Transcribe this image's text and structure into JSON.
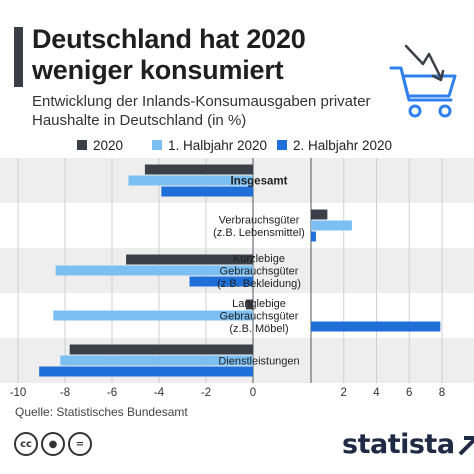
{
  "header": {
    "title": "Deutschland hat 2020 weniger konsumiert",
    "subtitle": "Entwicklung der Inlands-Konsumausgaben privater Haushalte in Deutschland (in %)"
  },
  "footer": {
    "source": "Quelle: Statistisches Bundesamt",
    "brand": "statista",
    "cc_icons": [
      "cc-icon",
      "by-icon",
      "nd-icon"
    ]
  },
  "colors": {
    "s2020": "#3a3f48",
    "h1": "#7cc0f3",
    "h2": "#1f6fd8",
    "band": "#eeeeee",
    "grid": "#cfcfcf"
  },
  "chart_data": {
    "type": "bar",
    "orientation": "horizontal",
    "categories": [
      "Insgesamt",
      "Verbrauchsgüter (z.B. Lebensmittel)",
      "Kurzlebige Gebrauchsgüter (z.B. Bekleidung)",
      "Langlebige Gebrauchsgüter (z.B. Möbel)",
      "Dienstleistungen"
    ],
    "category_lines": [
      [
        "Insgesamt"
      ],
      [
        "Verbrauchsgüter",
        "(z.B. Lebensmittel)"
      ],
      [
        "Kurzlebige",
        "Gebrauchsgüter",
        "(z.B. Bekleidung)"
      ],
      [
        "Langlebige",
        "Gebrauchsgüter",
        "(z.B. Möbel)"
      ],
      [
        "Dienstleistungen"
      ]
    ],
    "series": [
      {
        "name": "2020",
        "values": [
          -4.6,
          1.0,
          -5.4,
          -0.3,
          -7.8
        ]
      },
      {
        "name": "1. Halbjahr 2020",
        "values": [
          -5.3,
          2.5,
          -8.4,
          -8.5,
          -8.2
        ]
      },
      {
        "name": "2. Halbjahr 2020",
        "values": [
          -3.9,
          0.3,
          -2.7,
          7.9,
          -9.1
        ]
      }
    ],
    "xlim": [
      -10,
      8
    ],
    "xticks": [
      -10,
      -8,
      -6,
      -4,
      -2,
      0,
      2,
      4,
      6,
      8
    ],
    "legend": "top",
    "grid": true
  }
}
